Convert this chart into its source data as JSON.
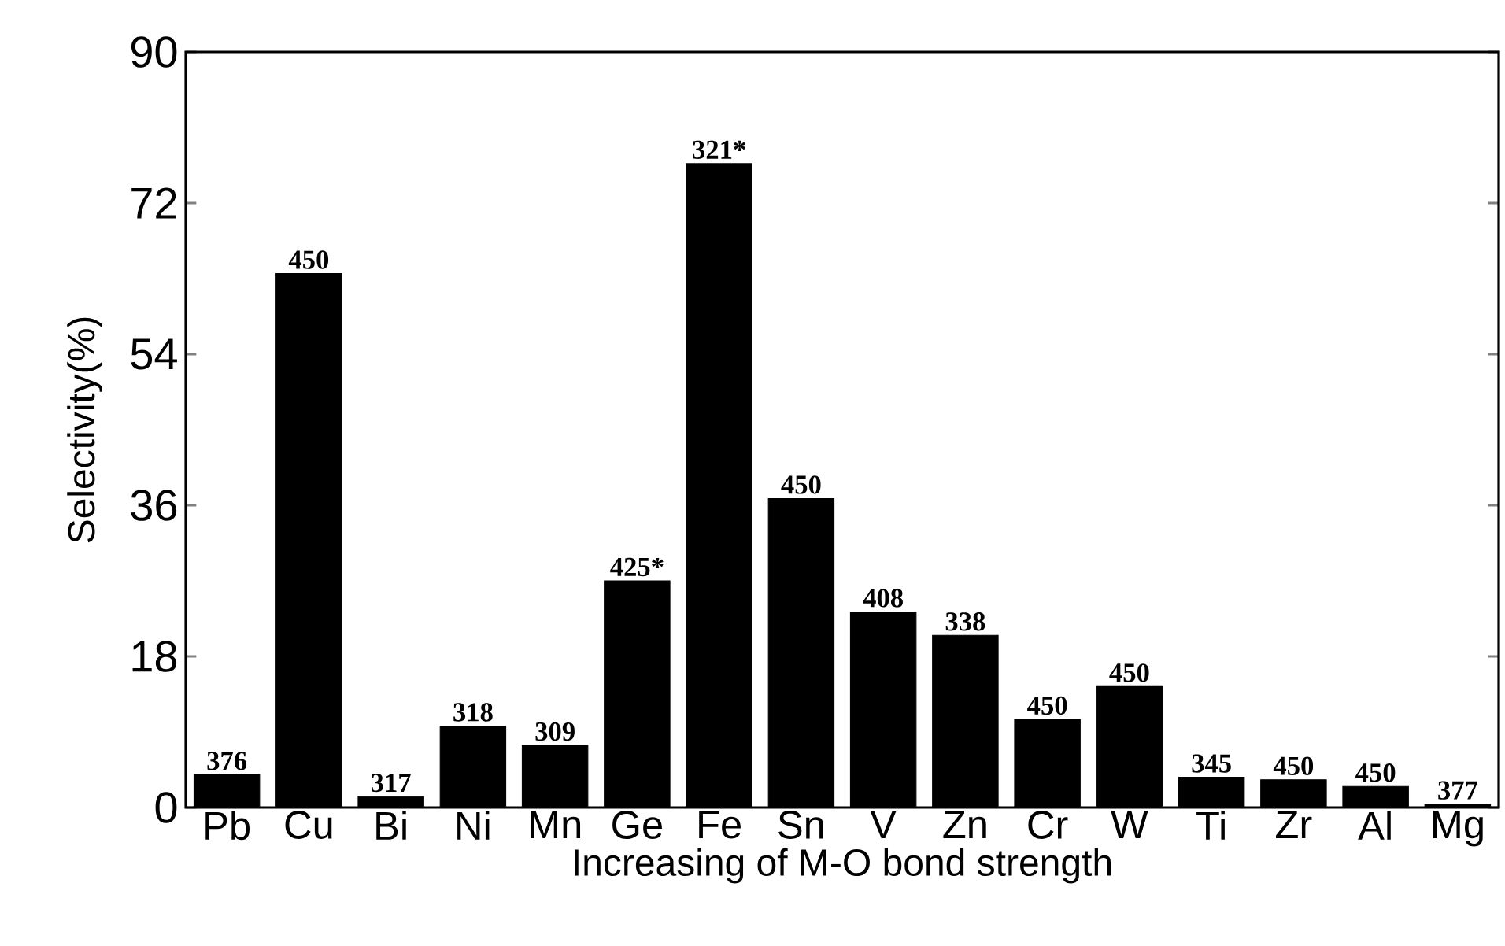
{
  "chart_data": {
    "type": "bar",
    "xlabel": "Increasing of M-O bond strength",
    "ylabel": "Selectivity(%)",
    "categories": [
      "Pb",
      "Cu",
      "Bi",
      "Ni",
      "Mn",
      "Ge",
      "Fe",
      "Sn",
      "V",
      "Zn",
      "Cr",
      "W",
      "Ti",
      "Zr",
      "Al",
      "Mg"
    ],
    "values": [
      3.9,
      63.6,
      1.3,
      9.7,
      7.4,
      27.0,
      76.7,
      36.8,
      23.3,
      20.5,
      10.5,
      14.4,
      3.6,
      3.3,
      2.5,
      0.4
    ],
    "annotations": [
      {
        "text": "376",
        "x": "Pb",
        "y": 3.9
      },
      {
        "text": "450",
        "x": "Cu",
        "y": 63.6
      },
      {
        "text": "317",
        "x": "Bi",
        "y": 1.3
      },
      {
        "text": "318",
        "x": "Ni",
        "y": 9.7
      },
      {
        "text": "309",
        "x": "Mn",
        "y": 7.4
      },
      {
        "text": "425*",
        "x": "Ge",
        "y": 27.0
      },
      {
        "text": "321*",
        "x": "Fe",
        "y": 76.7
      },
      {
        "text": "450",
        "x": "Sn",
        "y": 36.8
      },
      {
        "text": "408",
        "x": "V",
        "y": 23.3
      },
      {
        "text": "338",
        "x": "Zn",
        "y": 20.5
      },
      {
        "text": "450",
        "x": "Cr",
        "y": 10.5
      },
      {
        "text": "450",
        "x": "W",
        "y": 14.4
      },
      {
        "text": "345",
        "x": "Ti",
        "y": 3.6
      },
      {
        "text": "450",
        "x": "Zr",
        "y": 3.3
      },
      {
        "text": "450",
        "x": "Al",
        "y": 2.5
      },
      {
        "text": "377",
        "x": "Mg",
        "y": 0.4
      }
    ],
    "color": "#000000",
    "ylim": [
      0,
      90
    ],
    "yticks": [
      0,
      18,
      36,
      54,
      72,
      90
    ]
  }
}
